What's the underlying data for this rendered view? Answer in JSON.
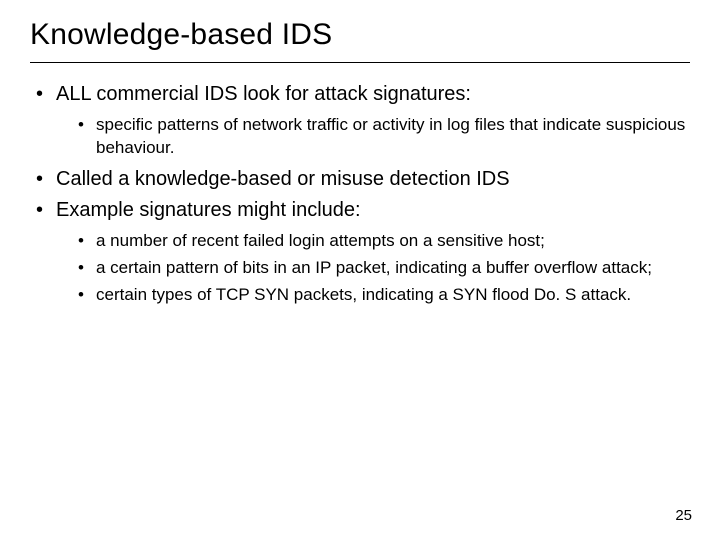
{
  "title": "Knowledge-based IDS",
  "bullets": {
    "b0": "ALL commercial IDS look for attack signatures:",
    "b0_sub": {
      "s0": "specific patterns of network traffic or activity in log files that indicate suspicious behaviour."
    },
    "b1": "Called a knowledge-based or misuse detection IDS",
    "b2": "Example signatures might include:",
    "b2_sub": {
      "s0": "a number of recent failed login attempts on a sensitive host;",
      "s1": "a certain pattern of bits in an IP packet, indicating a buffer overflow attack;",
      "s2": "certain types of TCP SYN packets, indicating a SYN flood Do. S attack."
    }
  },
  "page_number": "25",
  "style": {
    "background_color": "#ffffff",
    "text_color": "#000000",
    "title_fontsize": 30,
    "level1_fontsize": 20,
    "level2_fontsize": 17,
    "rule_color": "#000000",
    "font_family": "Arial"
  }
}
